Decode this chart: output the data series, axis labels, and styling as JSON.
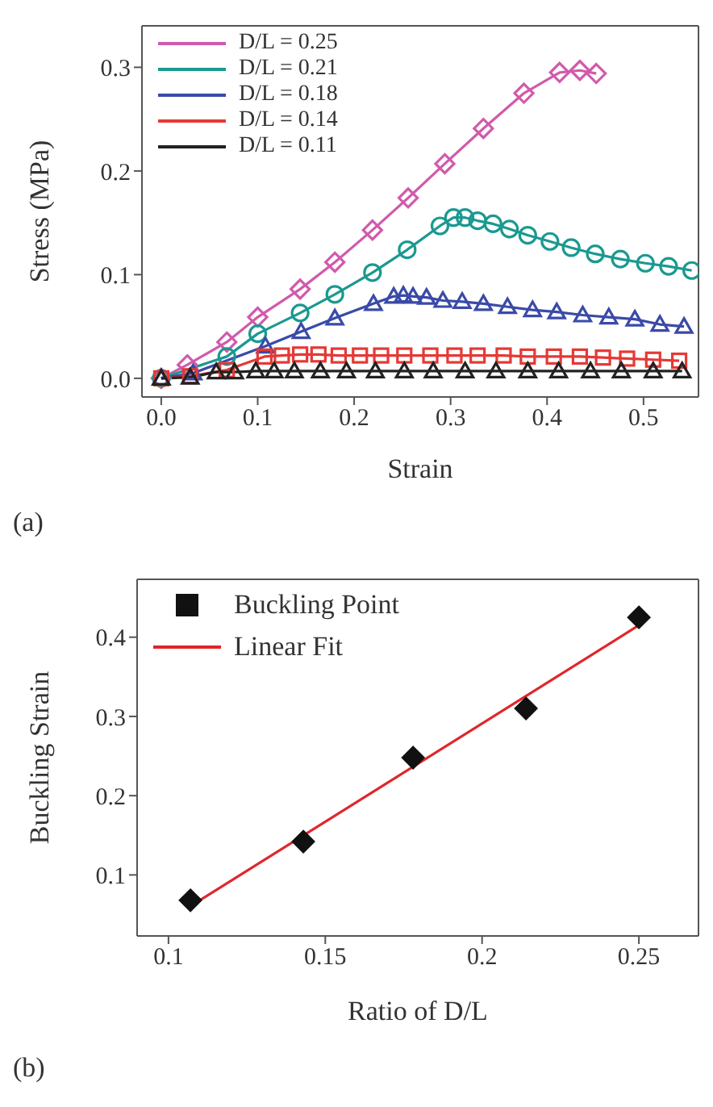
{
  "chart_data": [
    {
      "type": "line",
      "xlabel": "Strain",
      "ylabel": "Stress (MPa)",
      "annotations": [
        "(a)"
      ],
      "xlim": [
        -0.02,
        0.557
      ],
      "ylim": [
        -0.018,
        0.34
      ],
      "xticks": [
        {
          "value": 0,
          "label": "0.0"
        },
        0.1,
        0.2,
        0.3,
        0.4,
        0.5
      ],
      "yticks": [
        {
          "value": 0,
          "label": "0.0"
        },
        0.1,
        0.2,
        0.3
      ],
      "legend": "top left",
      "series": [
        {
          "name": "D/L = 0.25",
          "color": "#d15aab",
          "marker": "diamond",
          "x": [
            0,
            0.027,
            0.068,
            0.1,
            0.144,
            0.18,
            0.219,
            0.256,
            0.294,
            0.334,
            0.376,
            0.413,
            0.434,
            0.451
          ],
          "values": [
            0,
            0.013,
            0.035,
            0.059,
            0.086,
            0.112,
            0.143,
            0.174,
            0.207,
            0.241,
            0.275,
            0.295,
            0.297,
            0.294
          ]
        },
        {
          "name": "D/L = 0.21",
          "color": "#1a9990",
          "marker": "circle",
          "x": [
            0,
            0.068,
            0.1,
            0.144,
            0.18,
            0.219,
            0.255,
            0.289,
            0.303,
            0.315,
            0.328,
            0.344,
            0.361,
            0.38,
            0.403,
            0.425,
            0.45,
            0.476,
            0.502,
            0.526,
            0.55
          ],
          "values": [
            0,
            0.021,
            0.043,
            0.063,
            0.081,
            0.102,
            0.124,
            0.147,
            0.155,
            0.155,
            0.152,
            0.149,
            0.144,
            0.138,
            0.132,
            0.126,
            0.12,
            0.115,
            0.111,
            0.108,
            0.104
          ]
        },
        {
          "name": "D/L = 0.18",
          "color": "#3a4aa8",
          "marker": "triangle",
          "x": [
            0,
            0.033,
            0.108,
            0.145,
            0.18,
            0.22,
            0.241,
            0.251,
            0.261,
            0.275,
            0.292,
            0.312,
            0.334,
            0.359,
            0.385,
            0.41,
            0.437,
            0.464,
            0.491,
            0.517,
            0.542
          ],
          "values": [
            0,
            0.005,
            0.031,
            0.045,
            0.058,
            0.072,
            0.079,
            0.08,
            0.079,
            0.078,
            0.075,
            0.074,
            0.072,
            0.069,
            0.066,
            0.064,
            0.061,
            0.059,
            0.057,
            0.052,
            0.05
          ]
        },
        {
          "name": "D/L = 0.14",
          "color": "#e53935",
          "marker": "square",
          "x": [
            0,
            0.03,
            0.068,
            0.107,
            0.125,
            0.144,
            0.163,
            0.184,
            0.206,
            0.228,
            0.252,
            0.279,
            0.304,
            0.328,
            0.355,
            0.38,
            0.407,
            0.434,
            0.458,
            0.483,
            0.51,
            0.537
          ],
          "values": [
            0,
            0.002,
            0.008,
            0.021,
            0.022,
            0.023,
            0.023,
            0.022,
            0.022,
            0.022,
            0.022,
            0.022,
            0.022,
            0.022,
            0.022,
            0.021,
            0.021,
            0.021,
            0.02,
            0.019,
            0.018,
            0.017
          ]
        },
        {
          "name": "D/L = 0.11",
          "color": "#222222",
          "marker": "triangle",
          "x": [
            0,
            0.03,
            0.057,
            0.076,
            0.098,
            0.117,
            0.138,
            0.165,
            0.192,
            0.222,
            0.252,
            0.282,
            0.315,
            0.347,
            0.38,
            0.412,
            0.445,
            0.477,
            0.51,
            0.54
          ],
          "values": [
            0,
            0.001,
            0.006,
            0.006,
            0.007,
            0.007,
            0.007,
            0.007,
            0.007,
            0.007,
            0.007,
            0.007,
            0.007,
            0.007,
            0.007,
            0.007,
            0.007,
            0.007,
            0.007,
            0.007
          ]
        }
      ]
    },
    {
      "type": "scatter",
      "xlabel": "Ratio of D/L",
      "ylabel": "Buckling Strain",
      "annotations": [
        "(b)"
      ],
      "xlim": [
        0.09,
        0.269
      ],
      "ylim": [
        0.023,
        0.473
      ],
      "xticks": [
        0.1,
        0.15,
        0.2,
        0.25
      ],
      "yticks": [
        0.1,
        0.2,
        0.3,
        0.4
      ],
      "legend": "top left",
      "series": [
        {
          "name": "Buckling Point",
          "color": "#111111",
          "marker": "diamond",
          "x": [
            0.107,
            0.143,
            0.178,
            0.214,
            0.25
          ],
          "values": [
            0.068,
            0.142,
            0.248,
            0.31,
            0.425
          ]
        },
        {
          "name": "Linear Fit",
          "type": "line",
          "color": "#e0262b",
          "marker": "none",
          "x": [
            0.108,
            0.25
          ],
          "values": [
            0.063,
            0.415
          ]
        }
      ]
    }
  ]
}
